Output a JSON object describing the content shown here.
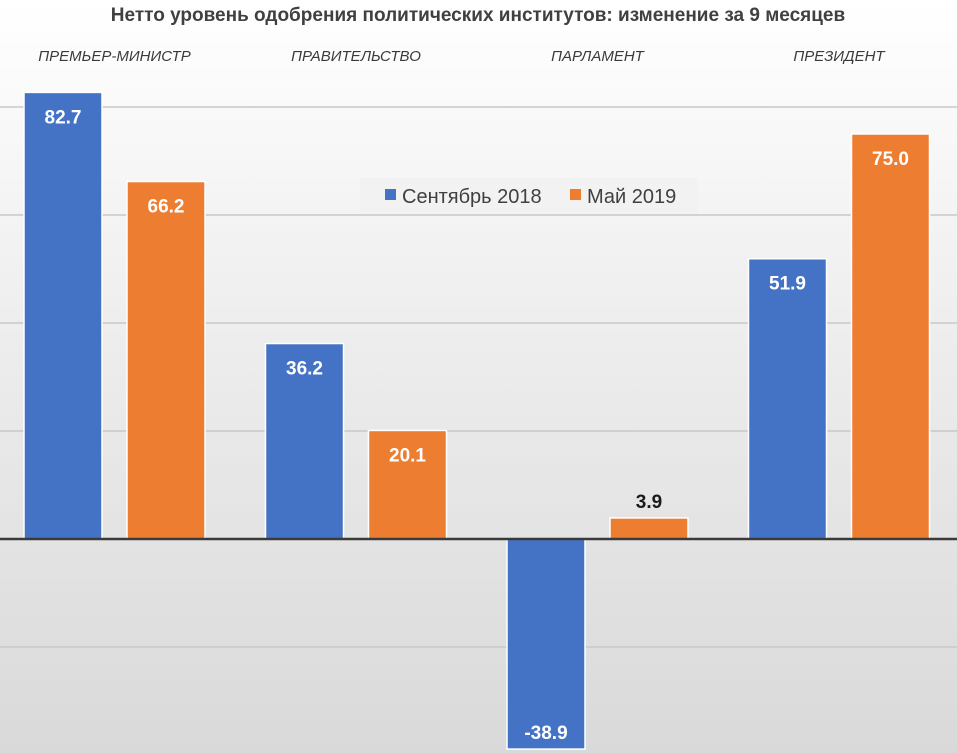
{
  "chart_data": {
    "type": "bar",
    "title": "Нетто уровень одобрения политических институтов: изменение за 9 месяцев",
    "categories": [
      "ПРЕМЬЕР-МИНИСТР",
      "ПРАВИТЕЛЬСТВО",
      "ПАРЛАМЕНТ",
      "ПРЕЗИДЕНТ"
    ],
    "series": [
      {
        "name": "Сентябрь 2018",
        "color": "#4472c4",
        "values": [
          82.7,
          36.2,
          -38.9,
          51.9
        ],
        "labels": [
          "82.7",
          "36.2",
          "-38.9",
          "51.9"
        ]
      },
      {
        "name": "Май 2019",
        "color": "#ed7d31",
        "values": [
          66.2,
          20.1,
          3.9,
          75.0
        ],
        "labels": [
          "66.2",
          "20.1",
          "3.9",
          "75.0"
        ]
      }
    ],
    "ylim": [
      -40,
      85
    ],
    "gridlines": [
      -20,
      20,
      40,
      60,
      80
    ],
    "grid": true,
    "legend_position": "center",
    "xlabel": "",
    "ylabel": ""
  }
}
